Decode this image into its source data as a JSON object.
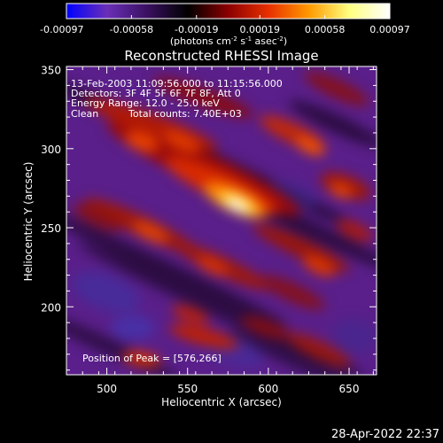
{
  "chart_data": {
    "type": "heatmap",
    "title": "Reconstructed RHESSI Image",
    "xlabel": "Heliocentric X (arcsec)",
    "ylabel": "Heliocentric Y (arcsec)",
    "xlim": [
      475,
      667
    ],
    "ylim": [
      157,
      352
    ],
    "x_ticks": [
      500,
      550,
      600,
      650
    ],
    "y_ticks": [
      200,
      250,
      300,
      350
    ],
    "colorbar": {
      "range": [
        -0.00097,
        0.00097
      ],
      "tick_values": [
        -0.00097,
        -0.00058,
        -0.00019,
        0.00019,
        0.00058,
        0.00097
      ],
      "tick_labels": [
        "-0.00097",
        "-0.00058",
        "-0.00019",
        "0.00019",
        "0.00058",
        "0.00097"
      ],
      "units_label": "(photons cm",
      "units_exp1": "-2",
      "units_mid": " s",
      "units_exp2": "-1",
      "units_mid2": " asec",
      "units_exp3": "-2",
      "units_end": ")",
      "colormap": [
        "#0000ff",
        "#6a2fb8",
        "#3a1060",
        "#000000",
        "#8b0000",
        "#e83000",
        "#ff9a00",
        "#ffff80",
        "#ffffff"
      ]
    },
    "annotations": {
      "time_range": "13-Feb-2003 11:09:56.000 to 11:15:56.000",
      "detectors": "Detectors: 3F 4F 5F 6F 7F 8F, Att 0",
      "energy_range": "Energy Range: 12.0 - 25.0 keV",
      "method": "Clean",
      "total_counts": "Total counts: 7.40E+03",
      "peak_position": "Position of Peak = [576,266]"
    },
    "peak": {
      "x": 576,
      "y": 266
    }
  },
  "footer": {
    "timestamp": "28-Apr-2022 22:37"
  }
}
